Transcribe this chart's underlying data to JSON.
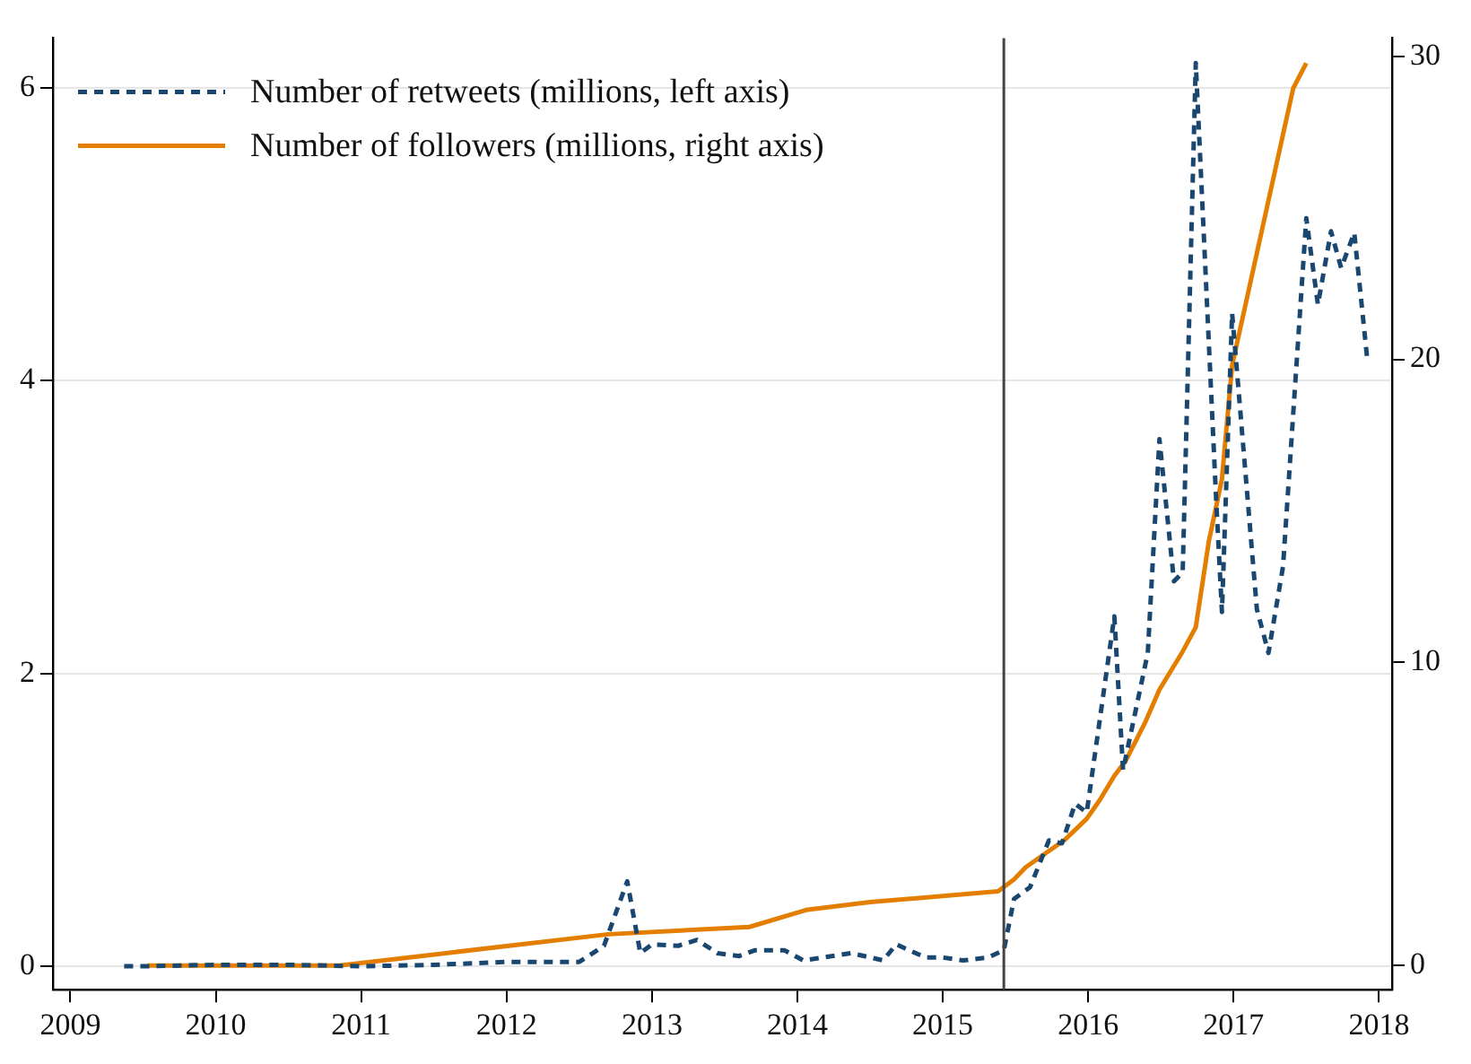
{
  "chart_data": {
    "type": "line",
    "xlim": [
      2008.88,
      2018.09
    ],
    "xticks": [
      2009,
      2010,
      2011,
      2012,
      2013,
      2014,
      2015,
      2016,
      2017,
      2018
    ],
    "ylim": [
      -0.16,
      6.34
    ],
    "yticks": [
      0,
      2,
      4,
      6
    ],
    "y2lim": [
      -0.8,
      30.6
    ],
    "y2ticks": [
      0,
      10,
      20,
      30
    ],
    "grid": "y",
    "legend": "top left",
    "marker": "none",
    "ref_lines": [
      {
        "axis": "x",
        "value": 2015.42,
        "color": "#444444"
      }
    ],
    "series": [
      {
        "name": "Number of retweets (millions, left axis)",
        "color": "#1a476f",
        "line_style": "dashed",
        "axis": "y",
        "x": [
          2009.37,
          2009.5,
          2010.0,
          2010.5,
          2011.0,
          2011.5,
          2012.0,
          2012.5,
          2012.67,
          2012.83,
          2012.92,
          2013.0,
          2013.18,
          2013.31,
          2013.45,
          2013.6,
          2013.71,
          2013.91,
          2014.04,
          2014.37,
          2014.59,
          2014.68,
          2014.88,
          2015.0,
          2015.14,
          2015.31,
          2015.42,
          2015.49,
          2015.6,
          2015.73,
          2015.82,
          2015.91,
          2015.99,
          2016.18,
          2016.24,
          2016.41,
          2016.49,
          2016.59,
          2016.65,
          2016.74,
          2016.88,
          2016.92,
          2016.99,
          2017.16,
          2017.24,
          2017.34,
          2017.5,
          2017.58,
          2017.67,
          2017.74,
          2017.83,
          2017.92
        ],
        "values": [
          0,
          0,
          0.01,
          0.01,
          0,
          0.01,
          0.03,
          0.03,
          0.14,
          0.58,
          0.09,
          0.15,
          0.14,
          0.18,
          0.09,
          0.07,
          0.11,
          0.11,
          0.04,
          0.09,
          0.04,
          0.15,
          0.06,
          0.06,
          0.04,
          0.06,
          0.11,
          0.46,
          0.54,
          0.86,
          0.84,
          1.11,
          1.05,
          2.39,
          1.34,
          2.14,
          3.6,
          2.63,
          2.69,
          6.17,
          3.19,
          2.42,
          4.46,
          2.44,
          2.14,
          2.73,
          5.11,
          4.52,
          5.02,
          4.77,
          5.01,
          4.14
        ]
      },
      {
        "name": "Number of followers (millions, right axis)",
        "color": "#e37e00",
        "line_style": "solid",
        "axis": "y2",
        "x": [
          2009.53,
          2010.85,
          2012.7,
          2013.67,
          2014.06,
          2014.5,
          2015.38,
          2015.49,
          2015.57,
          2015.84,
          2015.99,
          2016.08,
          2016.18,
          2016.26,
          2016.39,
          2016.49,
          2016.65,
          2016.74,
          2016.83,
          2016.92,
          2016.99,
          2017.41,
          2017.5
        ],
        "values": [
          0,
          0,
          1.03,
          1.27,
          1.83,
          2.09,
          2.45,
          2.84,
          3.24,
          4.15,
          4.84,
          5.46,
          6.26,
          6.77,
          8.0,
          9.1,
          10.36,
          11.16,
          14.0,
          16.05,
          19.8,
          28.94,
          29.77
        ]
      }
    ]
  }
}
